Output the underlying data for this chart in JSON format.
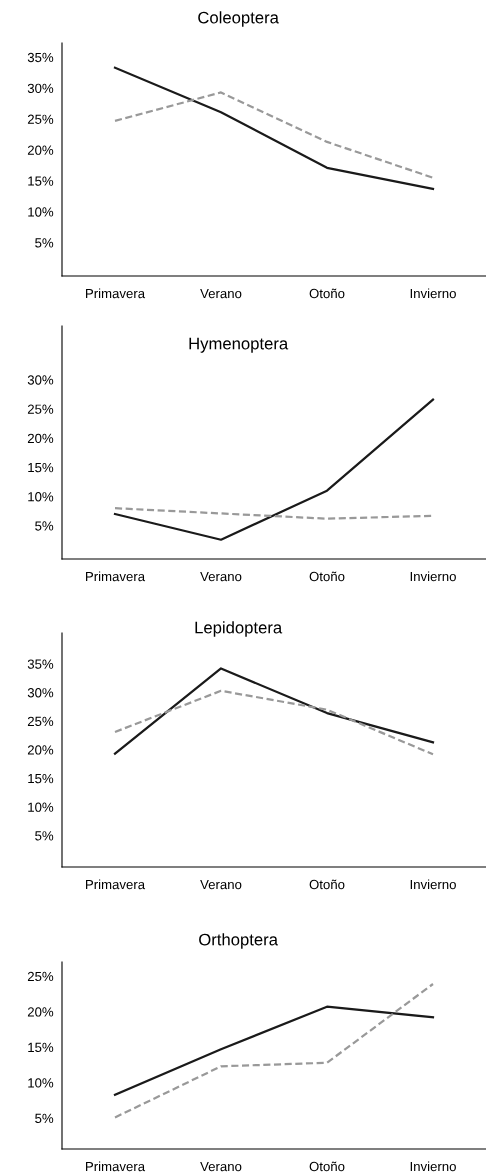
{
  "chart_data": [
    {
      "type": "line",
      "title": "Coleoptera",
      "categories": [
        "Primavera",
        "Verano",
        "Otoño",
        "Invierno"
      ],
      "ylim": [
        -0.4,
        37.3
      ],
      "yticks": [
        {
          "value": 5,
          "label": "5%"
        },
        {
          "value": 10,
          "label": "10%"
        },
        {
          "value": 15,
          "label": "15%"
        },
        {
          "value": 20,
          "label": "20%"
        },
        {
          "value": 25,
          "label": "25%"
        },
        {
          "value": 30,
          "label": "30%"
        },
        {
          "value": 35,
          "label": "35%"
        }
      ],
      "grid": false,
      "series": [
        {
          "color": "#1a1a1a",
          "line_style": "solid",
          "values": [
            33.3,
            26.1,
            17.1,
            13.7
          ]
        },
        {
          "color": "#999999",
          "line_style": "dashed",
          "values": [
            24.7,
            29.3,
            21.3,
            15.5
          ]
        }
      ]
    },
    {
      "type": "line",
      "title": "Hymenoptera",
      "categories": [
        "Primavera",
        "Verano",
        "Otoño",
        "Invierno"
      ],
      "ylim": [
        -0.7,
        39.2
      ],
      "yticks": [
        {
          "value": 5,
          "label": "5%"
        },
        {
          "value": 10,
          "label": "10%"
        },
        {
          "value": 15,
          "label": "15%"
        },
        {
          "value": 20,
          "label": "20%"
        },
        {
          "value": 25,
          "label": "25%"
        },
        {
          "value": 30,
          "label": "30%"
        }
      ],
      "grid": false,
      "series": [
        {
          "color": "#1a1a1a",
          "line_style": "solid",
          "values": [
            7.0,
            2.6,
            11.0,
            26.6
          ]
        },
        {
          "color": "#999999",
          "line_style": "dashed",
          "values": [
            8.0,
            7.1,
            6.2,
            6.7
          ]
        }
      ]
    },
    {
      "type": "line",
      "title": "Lepidoptera",
      "categories": [
        "Primavera",
        "Verano",
        "Otoño",
        "Invierno"
      ],
      "ylim": [
        -0.5,
        40.4
      ],
      "yticks": [
        {
          "value": 5,
          "label": "5%"
        },
        {
          "value": 10,
          "label": "10%"
        },
        {
          "value": 15,
          "label": "15%"
        },
        {
          "value": 20,
          "label": "20%"
        },
        {
          "value": 25,
          "label": "25%"
        },
        {
          "value": 30,
          "label": "30%"
        },
        {
          "value": 35,
          "label": "35%"
        }
      ],
      "grid": false,
      "series": [
        {
          "color": "#1a1a1a",
          "line_style": "solid",
          "values": [
            19.3,
            34.2,
            26.4,
            21.3
          ]
        },
        {
          "color": "#999999",
          "line_style": "dashed",
          "values": [
            23.1,
            30.3,
            27.0,
            19.2
          ]
        }
      ]
    },
    {
      "type": "line",
      "title": "Orthoptera",
      "categories": [
        "Primavera",
        "Verano",
        "Otoño",
        "Invierno"
      ],
      "ylim": [
        0.65,
        27.0
      ],
      "yticks": [
        {
          "value": 5,
          "label": "5%"
        },
        {
          "value": 10,
          "label": "10%"
        },
        {
          "value": 15,
          "label": "15%"
        },
        {
          "value": 20,
          "label": "20%"
        },
        {
          "value": 25,
          "label": "25%"
        }
      ],
      "grid": false,
      "series": [
        {
          "color": "#1a1a1a",
          "line_style": "solid",
          "values": [
            8.3,
            14.7,
            20.7,
            19.2
          ]
        },
        {
          "color": "#999999",
          "line_style": "dashed",
          "values": [
            5.1,
            12.3,
            12.8,
            23.9
          ]
        }
      ]
    }
  ]
}
